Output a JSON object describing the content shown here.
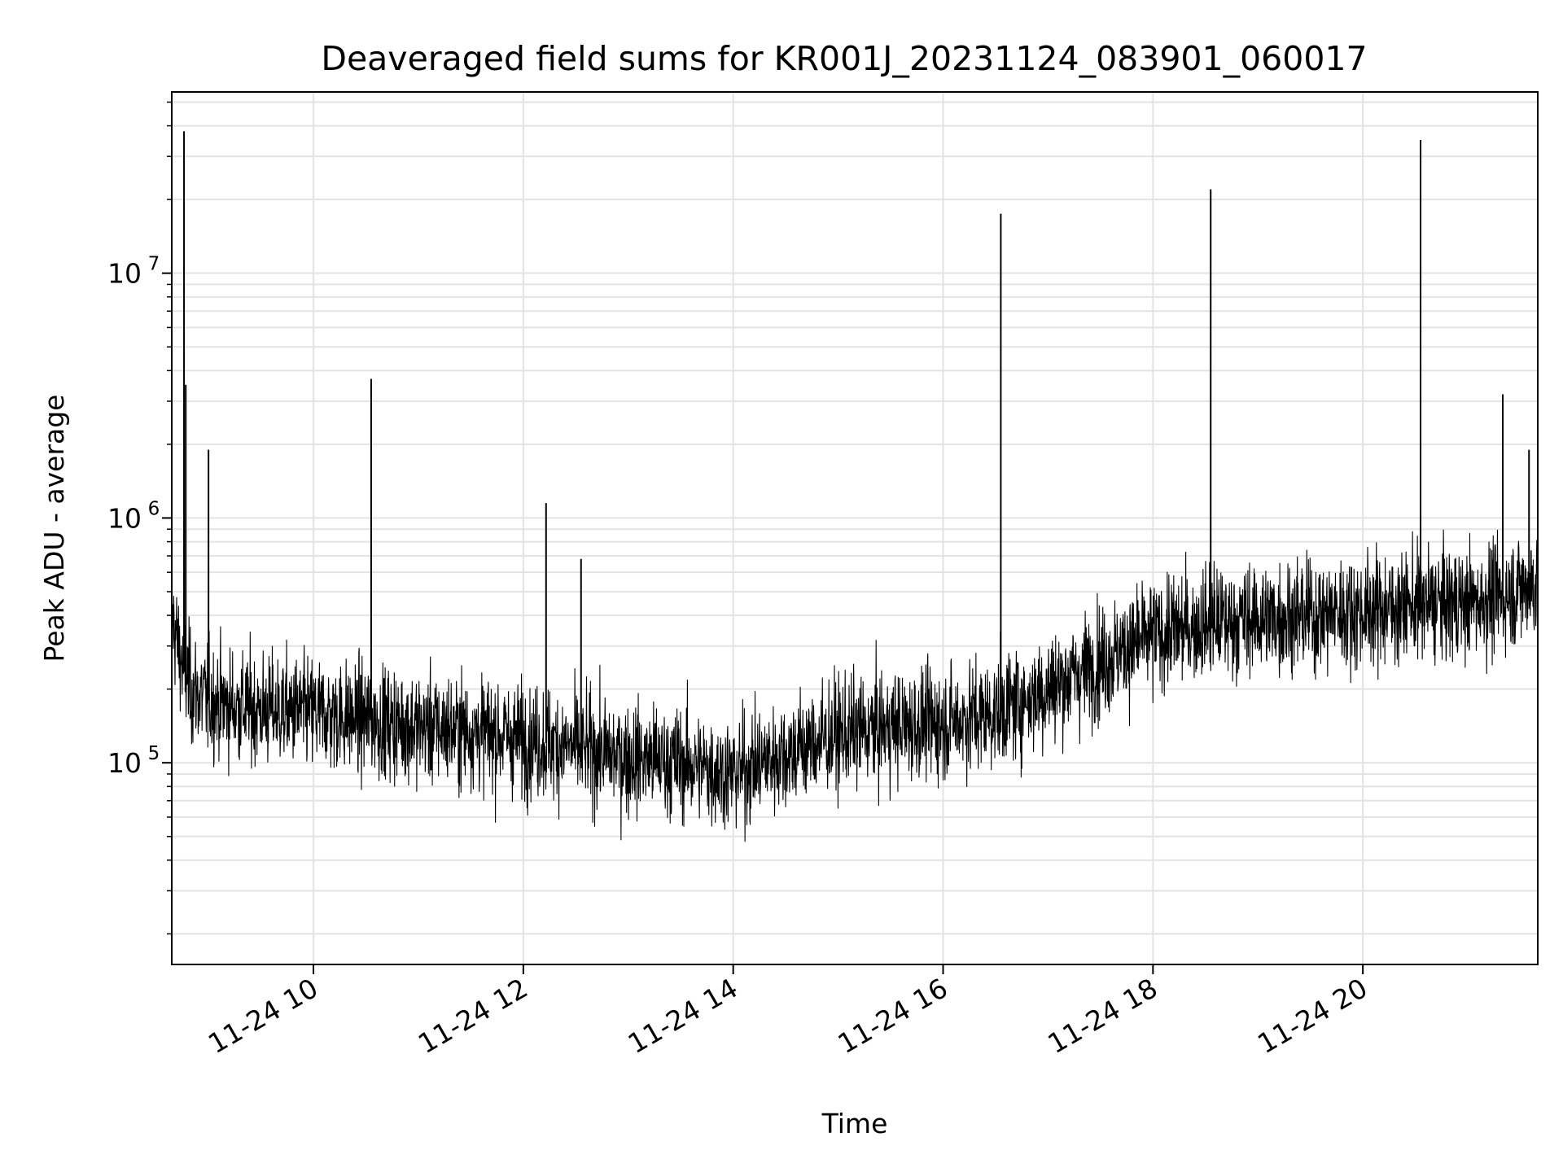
{
  "chart_data": {
    "type": "line",
    "title": "Deaveraged field sums for KR001J_20231124_083901_060017",
    "xlabel": "Time",
    "ylabel": "Peak ADU - average",
    "yscale": "log",
    "xlim": [
      "2023-11-24 08:39",
      "2023-11-24 21:40"
    ],
    "ylim": [
      15000,
      55000000
    ],
    "grid": true,
    "x_ticks": [
      {
        "value": "2023-11-24 10:00",
        "label": "11-24 10"
      },
      {
        "value": "2023-11-24 12:00",
        "label": "11-24 12"
      },
      {
        "value": "2023-11-24 14:00",
        "label": "11-24 14"
      },
      {
        "value": "2023-11-24 16:00",
        "label": "11-24 16"
      },
      {
        "value": "2023-11-24 18:00",
        "label": "11-24 18"
      },
      {
        "value": "2023-11-24 20:00",
        "label": "11-24 20"
      }
    ],
    "y_ticks": [
      {
        "value": 100000,
        "base": "10",
        "exp": "5"
      },
      {
        "value": 1000000,
        "base": "10",
        "exp": "6"
      },
      {
        "value": 10000000,
        "base": "10",
        "exp": "7"
      }
    ],
    "series": [
      {
        "color": "#000000",
        "x": [
          "2023-11-24 08:39",
          "2023-11-24 08:45",
          "2023-11-24 08:50",
          "2023-11-24 09:00",
          "2023-11-24 09:15",
          "2023-11-24 09:30",
          "2023-11-24 10:00",
          "2023-11-24 10:30",
          "2023-11-24 11:00",
          "2023-11-24 11:30",
          "2023-11-24 12:00",
          "2023-11-24 12:30",
          "2023-11-24 13:00",
          "2023-11-24 13:30",
          "2023-11-24 14:00",
          "2023-11-24 14:30",
          "2023-11-24 15:00",
          "2023-11-24 15:30",
          "2023-11-24 16:00",
          "2023-11-24 16:30",
          "2023-11-24 17:00",
          "2023-11-24 17:30",
          "2023-11-24 18:00",
          "2023-11-24 18:30",
          "2023-11-24 19:00",
          "2023-11-24 19:30",
          "2023-11-24 20:00",
          "2023-11-24 20:30",
          "2023-11-24 21:00",
          "2023-11-24 21:20",
          "2023-11-24 21:40"
        ],
        "values": [
          400000,
          250000,
          200000,
          180000,
          170000,
          165000,
          160000,
          150000,
          140000,
          135000,
          125000,
          115000,
          105000,
          100000,
          90000,
          110000,
          130000,
          140000,
          145000,
          160000,
          200000,
          260000,
          330000,
          370000,
          390000,
          400000,
          420000,
          440000,
          450000,
          480000,
          550000
        ],
        "spread": 2.4
      }
    ],
    "spikes": [
      {
        "x": "2023-11-24 08:46",
        "value": 38000000
      },
      {
        "x": "2023-11-24 08:47",
        "value": 3500000
      },
      {
        "x": "2023-11-24 09:00",
        "value": 1900000
      },
      {
        "x": "2023-11-24 10:33",
        "value": 3700000
      },
      {
        "x": "2023-11-24 12:13",
        "value": 1150000
      },
      {
        "x": "2023-11-24 12:33",
        "value": 680000
      },
      {
        "x": "2023-11-24 16:33",
        "value": 17500000
      },
      {
        "x": "2023-11-24 18:33",
        "value": 22000000
      },
      {
        "x": "2023-11-24 20:33",
        "value": 35000000
      },
      {
        "x": "2023-11-24 21:20",
        "value": 3200000
      },
      {
        "x": "2023-11-24 21:35",
        "value": 1900000
      }
    ]
  }
}
